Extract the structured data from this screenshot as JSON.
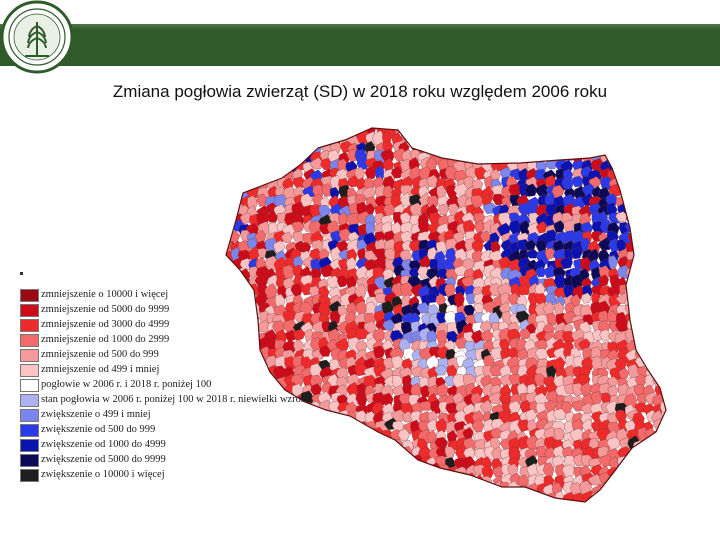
{
  "header": {
    "title": "Zmiana pogłowia zwierząt (SD) w 2018 roku względem 2006 roku",
    "band_color": "#2f5b2b",
    "logo_icon": "university-seal-icon",
    "logo_text": "UNIWERSYTET PRZYRODNICZO-HUMANISTYCZNY W SIEDLCACH"
  },
  "map": {
    "region": "Polska",
    "unit": "gmina",
    "border_color": "#5a1010"
  },
  "legend": {
    "items": [
      {
        "label": "zmniejszenie o 10000 i więcej",
        "color": "#9a0a14"
      },
      {
        "label": "zmniejszenie od 5000 do 9999",
        "color": "#cc0c1a"
      },
      {
        "label": "zmniejszenie od 3000 do 4999",
        "color": "#ee2a2a"
      },
      {
        "label": "zmniejszenie od 1000 do 2999",
        "color": "#f36a6a"
      },
      {
        "label": "zmniejszenie od 500 do 999",
        "color": "#f59a9a"
      },
      {
        "label": "zmniejszenie od 499 i mniej",
        "color": "#fac4c4"
      },
      {
        "label": "pogłowie w 2006 r. i 2018 r. poniżej 100",
        "color": "#ffffff"
      },
      {
        "label": "stan pogłowia w 2006 r. poniżej 100 w 2018 r. niewielki wzrost",
        "color": "#aab2f2"
      },
      {
        "label": "zwiększenie o 499 i mniej",
        "color": "#7a86ee"
      },
      {
        "label": "zwiększenie od 500 do 999",
        "color": "#2a3ae8"
      },
      {
        "label": "zwiększenie od 1000 do 4999",
        "color": "#0a12b0"
      },
      {
        "label": "zwiększenie od 5000 do 9999",
        "color": "#0a0a58"
      },
      {
        "label": "zwiększenie o 10000 i więcej",
        "color": "#1e1e1e"
      }
    ]
  }
}
